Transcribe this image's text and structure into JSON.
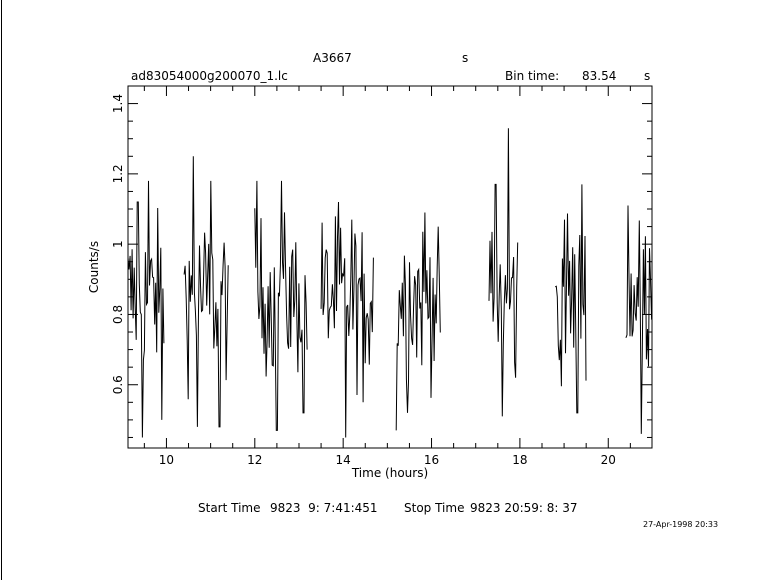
{
  "header": {
    "object": "A3667",
    "object_suffix": "s",
    "filename": "ad83054000g200070_1.lc",
    "bin_label": "Bin time:",
    "bin_value": "83.54",
    "bin_unit": "s"
  },
  "footer": {
    "start_label": "Start Time",
    "start_value": "9823  9: 7:41:451",
    "stop_label": "Stop Time",
    "stop_value": "9823 20:59: 8: 37",
    "date_stamp": "27-Apr-1998 20:33"
  },
  "chart_data": {
    "type": "line",
    "title": "A3667",
    "xlabel": "Time (hours)",
    "ylabel": "Counts/s",
    "xlim": [
      9.13,
      20.99
    ],
    "ylim": [
      0.42,
      1.45
    ],
    "x_ticks": [
      10,
      12,
      14,
      16,
      18,
      20
    ],
    "x_tick_labels": [
      "10",
      "12",
      "14",
      "16",
      "18",
      "20"
    ],
    "y_ticks": [
      0.6,
      0.8,
      1.0,
      1.2,
      1.4
    ],
    "y_tick_labels": [
      "0.6",
      "0.8",
      "1",
      "1.2",
      "1.4"
    ],
    "grid": false,
    "segments": [
      {
        "x_start": 9.13,
        "x_end": 9.95,
        "peaks": [
          [
            9.35,
            1.12
          ],
          [
            9.45,
            0.45
          ],
          [
            9.6,
            1.18
          ],
          [
            9.9,
            0.5
          ]
        ]
      },
      {
        "x_start": 10.4,
        "x_end": 11.4,
        "peaks": [
          [
            10.6,
            1.25
          ],
          [
            10.7,
            0.48
          ],
          [
            11.0,
            1.18
          ],
          [
            11.2,
            0.48
          ]
        ]
      },
      {
        "x_start": 12.0,
        "x_end": 13.2,
        "peaks": [
          [
            12.05,
            1.18
          ],
          [
            12.5,
            0.47
          ],
          [
            12.6,
            1.18
          ],
          [
            13.1,
            0.52
          ]
        ]
      },
      {
        "x_start": 13.5,
        "x_end": 14.7,
        "peaks": [
          [
            13.9,
            1.12
          ],
          [
            14.05,
            0.45
          ],
          [
            14.2,
            1.07
          ],
          [
            14.45,
            0.55
          ]
        ]
      },
      {
        "x_start": 15.2,
        "x_end": 16.2,
        "peaks": [
          [
            15.2,
            0.47
          ],
          [
            15.45,
            0.52
          ],
          [
            15.85,
            1.09
          ],
          [
            16.15,
            1.05
          ]
        ]
      },
      {
        "x_start": 17.3,
        "x_end": 17.95,
        "peaks": [
          [
            17.45,
            1.17
          ],
          [
            17.6,
            0.51
          ],
          [
            17.75,
            1.33
          ],
          [
            17.9,
            0.62
          ]
        ]
      },
      {
        "x_start": 18.8,
        "x_end": 19.5,
        "peaks": [
          [
            18.9,
            0.67
          ],
          [
            19.0,
            1.07
          ],
          [
            19.3,
            0.52
          ],
          [
            19.4,
            1.17
          ]
        ]
      },
      {
        "x_start": 20.4,
        "x_end": 20.99,
        "peaks": [
          [
            20.45,
            1.11
          ],
          [
            20.75,
            0.46
          ],
          [
            20.95,
            0.9
          ]
        ]
      }
    ]
  }
}
